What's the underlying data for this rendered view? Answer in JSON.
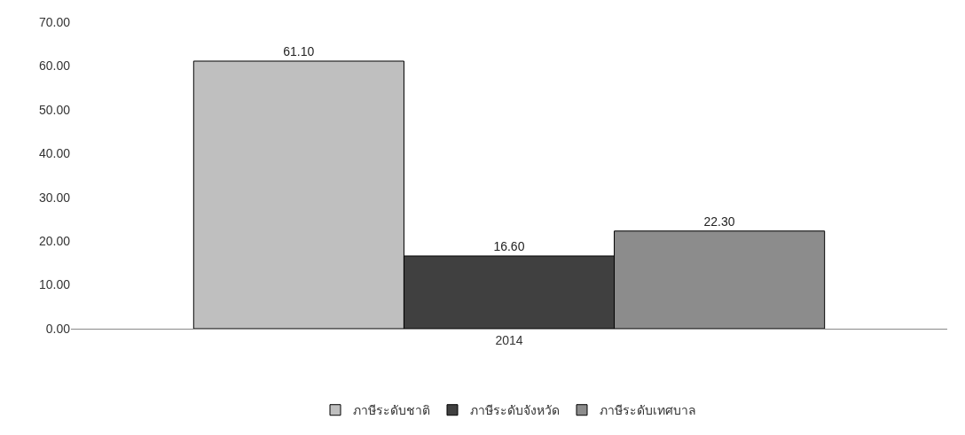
{
  "chart_data": {
    "type": "bar",
    "categories": [
      "2014"
    ],
    "series": [
      {
        "name": "ภาษีระดับชาติ",
        "color": "#bfbfbf",
        "values": [
          61.1
        ],
        "value_labels": [
          "61.10"
        ]
      },
      {
        "name": "ภาษีระดับจังหวัด",
        "color": "#404040",
        "values": [
          16.6
        ],
        "value_labels": [
          "16.60"
        ]
      },
      {
        "name": "ภาษีระดับเทศบาล",
        "color": "#8c8c8c",
        "values": [
          22.3
        ],
        "value_labels": [
          "22.30"
        ]
      }
    ],
    "ylim": [
      0,
      70
    ],
    "yticks": [
      {
        "value": 0,
        "label": "0.00"
      },
      {
        "value": 10,
        "label": "10.00"
      },
      {
        "value": 20,
        "label": "20.00"
      },
      {
        "value": 30,
        "label": "30.00"
      },
      {
        "value": 40,
        "label": "40.00"
      },
      {
        "value": 50,
        "label": "50.00"
      },
      {
        "value": 60,
        "label": "60.00"
      },
      {
        "value": 70,
        "label": "70.00"
      }
    ],
    "legend": "bottom"
  }
}
